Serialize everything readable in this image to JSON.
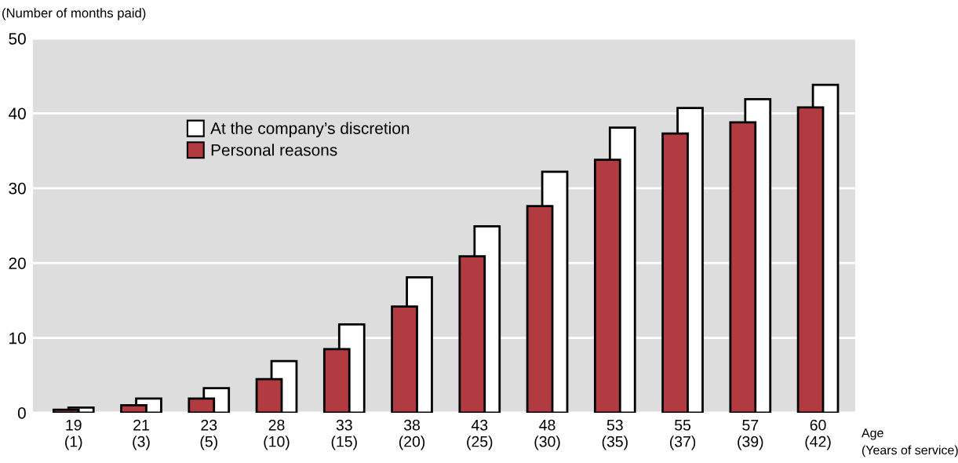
{
  "chart_data": {
    "type": "bar",
    "ylabel": "(Number of months paid)",
    "xlabel": "Age\n(Years of service)",
    "categories": [
      "19\n(1)",
      "21\n(3)",
      "23\n(5)",
      "28\n(10)",
      "33\n(15)",
      "38\n(20)",
      "43\n(25)",
      "48\n(30)",
      "53\n(35)",
      "55\n(37)",
      "57\n(39)",
      "60\n(42)"
    ],
    "series": [
      {
        "name": "At the company’s discretion",
        "color": "#ffffff",
        "values": [
          0.7,
          1.9,
          3.3,
          6.9,
          11.8,
          18.1,
          24.9,
          32.2,
          38.1,
          40.7,
          41.9,
          43.8
        ]
      },
      {
        "name": "Personal reasons",
        "color": "#b23b42",
        "values": [
          0.4,
          1.0,
          1.9,
          4.5,
          8.5,
          14.2,
          20.9,
          27.6,
          33.8,
          37.3,
          38.8,
          40.8
        ]
      }
    ],
    "ylim": [
      0,
      50
    ],
    "yticks": [
      0,
      10,
      20,
      30,
      40,
      50
    ],
    "grid": "y",
    "legend": "top left"
  }
}
